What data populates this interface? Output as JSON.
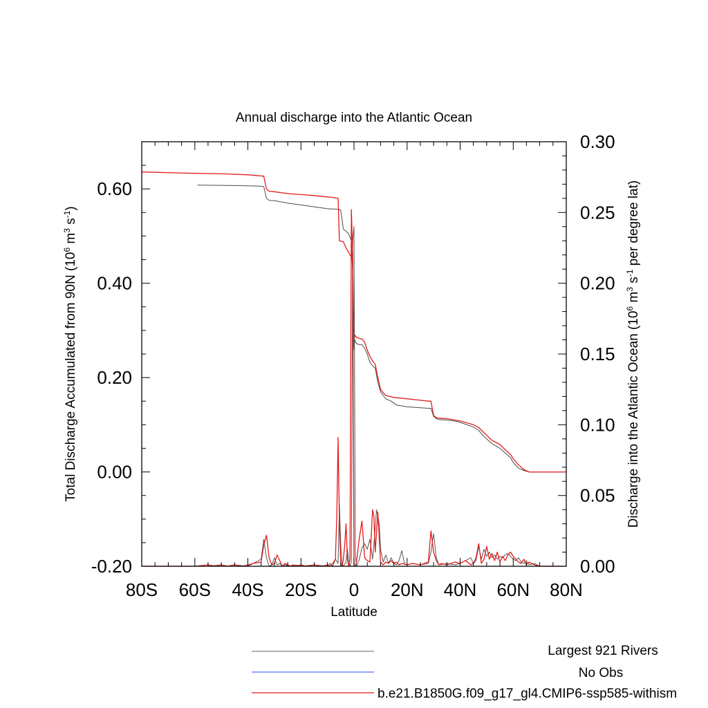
{
  "chart_data": {
    "type": "line",
    "title": "Annual discharge into the Atlantic Ocean",
    "xlabel": "Latitude",
    "ylabel_left": {
      "prefix": "Total Discharge Accumulated from 90N (10",
      "sup1": "6",
      "mid1": " m",
      "sup2": "3",
      "mid2": " s",
      "sup3": "-1",
      "suffix": ")"
    },
    "ylabel_right": {
      "prefix": "Discharge into the Atlantic Ocean (10",
      "sup1": "6",
      "mid1": " m",
      "sup2": "3",
      "mid2": " s",
      "sup3": "-1",
      "suffix": " per degree lat)"
    },
    "xlim": [
      -80,
      80
    ],
    "ylim_left": [
      -0.2,
      0.7
    ],
    "ylim_right": [
      0,
      0.3
    ],
    "x_ticks": [
      {
        "value": -80,
        "label": "80S"
      },
      {
        "value": -60,
        "label": "60S"
      },
      {
        "value": -40,
        "label": "40S"
      },
      {
        "value": -20,
        "label": "20S"
      },
      {
        "value": 0,
        "label": "0"
      },
      {
        "value": 20,
        "label": "20N"
      },
      {
        "value": 40,
        "label": "40N"
      },
      {
        "value": 60,
        "label": "60N"
      },
      {
        "value": 80,
        "label": "80N"
      }
    ],
    "y_ticks_left": [
      {
        "value": -0.2,
        "label": "-0.20"
      },
      {
        "value": 0.0,
        "label": "0.00"
      },
      {
        "value": 0.2,
        "label": "0.20"
      },
      {
        "value": 0.4,
        "label": "0.40"
      },
      {
        "value": 0.6,
        "label": "0.60"
      }
    ],
    "y_ticks_right": [
      {
        "value": 0.0,
        "label": "0.00"
      },
      {
        "value": 0.05,
        "label": "0.05"
      },
      {
        "value": 0.1,
        "label": "0.10"
      },
      {
        "value": 0.15,
        "label": "0.15"
      },
      {
        "value": 0.2,
        "label": "0.20"
      },
      {
        "value": 0.25,
        "label": "0.25"
      },
      {
        "value": 0.3,
        "label": "0.30"
      }
    ],
    "legend": {
      "placement": "bottom",
      "entries": [
        {
          "label": "Largest 921 Rivers",
          "color": "#808080"
        },
        {
          "label": "No Obs",
          "color": "#5a6cff"
        },
        {
          "label": "b.e21.B1850G.f09_g17_gl4.CMIP6-ssp585-withism",
          "color": "#e41a1a"
        }
      ]
    },
    "series": [
      {
        "name": "Largest 921 Rivers",
        "axis": "left",
        "color": "#4a4a4a",
        "x": [
          -59,
          -44,
          -36,
          -34,
          -33,
          -32,
          -30,
          -25,
          -20,
          -15,
          -10,
          -6,
          -5,
          -4,
          -3,
          -2,
          -1,
          -0.5,
          0,
          0.3,
          0.6,
          1,
          2,
          3,
          4,
          5,
          6,
          7,
          8,
          9,
          10,
          11,
          12,
          14,
          16,
          18,
          20,
          25,
          28,
          29,
          30,
          31,
          32,
          35,
          38,
          40,
          45,
          47,
          49,
          50,
          51,
          52,
          55,
          57,
          59,
          60,
          62,
          64,
          66,
          68,
          70,
          80
        ],
        "y": [
          0.608,
          0.607,
          0.606,
          0.605,
          0.58,
          0.576,
          0.575,
          0.57,
          0.566,
          0.562,
          0.558,
          0.557,
          0.555,
          0.515,
          0.51,
          0.505,
          0.49,
          0.42,
          0.26,
          0.28,
          0.275,
          0.272,
          0.27,
          0.27,
          0.262,
          0.25,
          0.232,
          0.225,
          0.22,
          0.19,
          0.17,
          0.162,
          0.155,
          0.15,
          0.142,
          0.14,
          0.138,
          0.136,
          0.135,
          0.135,
          0.118,
          0.113,
          0.111,
          0.11,
          0.108,
          0.105,
          0.095,
          0.088,
          0.075,
          0.07,
          0.065,
          0.06,
          0.05,
          0.04,
          0.03,
          0.02,
          0.008,
          0.003,
          0.0,
          0.0,
          0.0,
          0.0
        ]
      },
      {
        "name": "b.e21.B1850G.f09_g17_gl4.CMIP6-ssp585-withism",
        "axis": "left",
        "color": "#e41a1a",
        "x": [
          -80,
          -60,
          -50,
          -40,
          -34,
          -33,
          -32,
          -30,
          -25,
          -20,
          -15,
          -10,
          -8,
          -7,
          -6,
          -5.5,
          -4,
          -3,
          -2,
          -1,
          -0.5,
          0,
          0.3,
          0.6,
          1,
          2,
          3,
          4,
          5,
          6,
          7,
          8,
          9,
          10,
          11,
          12,
          15,
          20,
          25,
          28,
          29,
          30,
          31,
          32,
          35,
          40,
          45,
          47,
          49,
          50,
          51,
          52,
          55,
          57,
          59,
          60,
          62,
          64,
          66,
          68,
          70,
          80
        ],
        "y": [
          0.636,
          0.633,
          0.632,
          0.63,
          0.627,
          0.6,
          0.595,
          0.594,
          0.59,
          0.588,
          0.586,
          0.583,
          0.582,
          0.581,
          0.58,
          0.49,
          0.488,
          0.475,
          0.465,
          0.455,
          0.445,
          0.28,
          0.29,
          0.288,
          0.285,
          0.283,
          0.282,
          0.275,
          0.258,
          0.245,
          0.235,
          0.228,
          0.2,
          0.175,
          0.168,
          0.162,
          0.158,
          0.155,
          0.152,
          0.15,
          0.15,
          0.12,
          0.115,
          0.114,
          0.113,
          0.108,
          0.1,
          0.094,
          0.083,
          0.078,
          0.072,
          0.067,
          0.058,
          0.047,
          0.037,
          0.028,
          0.015,
          0.005,
          0.0,
          0.0,
          0.0,
          0.0
        ]
      },
      {
        "name": "Largest 921 Rivers",
        "axis": "right",
        "color": "#555555",
        "x": [
          -80,
          -55,
          -50,
          -47,
          -45,
          -40,
          -38,
          -35,
          -34,
          -33,
          -32,
          -31,
          -30,
          -29,
          -28,
          -27,
          -26,
          -24,
          -22,
          -20,
          -15,
          -10,
          -9,
          -8,
          -7,
          -6,
          -5.5,
          -5,
          -4.5,
          -4,
          -3,
          -2.5,
          -2,
          -1.5,
          -1,
          -0.5,
          0,
          0.5,
          1,
          2,
          3,
          4,
          5,
          6,
          7,
          8,
          8.5,
          9,
          9.5,
          10,
          11,
          12,
          13,
          14,
          15,
          16,
          17,
          18,
          19,
          20,
          22,
          25,
          28,
          29,
          30,
          31,
          32,
          35,
          38,
          40,
          42,
          44,
          45,
          46,
          47,
          48,
          49,
          50,
          51,
          52,
          53,
          54,
          55,
          56,
          57,
          58,
          59,
          60,
          61,
          62,
          63,
          64,
          65,
          66,
          68,
          70,
          75,
          80
        ],
        "y": [
          0,
          0,
          0.001,
          0,
          0.001,
          0,
          0.002,
          0.005,
          0.019,
          0.006,
          0,
          0.001,
          0.006,
          0.001,
          0.002,
          0,
          0.001,
          0,
          0.001,
          0,
          0.001,
          0,
          0.002,
          0,
          0.005,
          0.002,
          0.044,
          0.015,
          0.002,
          0,
          0.003,
          0.012,
          0.004,
          0,
          0.003,
          0.23,
          0.24,
          0.008,
          0,
          0.005,
          0.013,
          0.016,
          0.012,
          0.019,
          0.005,
          0.027,
          0.04,
          0.035,
          0.03,
          0.012,
          0.003,
          0.008,
          0.002,
          0.006,
          0.002,
          0.001,
          0.004,
          0.011,
          0.002,
          0.001,
          0.002,
          0.001,
          0.002,
          0.01,
          0.023,
          0.006,
          0.001,
          0.002,
          0.001,
          0.002,
          0.004,
          0.006,
          0.002,
          0.004,
          0.014,
          0.005,
          0.012,
          0.007,
          0.01,
          0.006,
          0.008,
          0.005,
          0.007,
          0.006,
          0.008,
          0.009,
          0.007,
          0.005,
          0.004,
          0.006,
          0.003,
          0.002,
          0.004,
          0.001,
          0.002,
          0,
          0,
          0
        ]
      },
      {
        "name": "b.e21.B1850G.f09_g17_gl4.CMIP6-ssp585-withism",
        "axis": "right",
        "color": "#e41a1a",
        "x": [
          -80,
          -60,
          -55,
          -52,
          -50,
          -48,
          -45,
          -42,
          -40,
          -38,
          -35,
          -34,
          -33,
          -32,
          -31,
          -30,
          -29,
          -28,
          -27,
          -26,
          -25,
          -24,
          -23,
          -22,
          -20,
          -18,
          -15,
          -12,
          -10,
          -9,
          -8,
          -7,
          -6.5,
          -6,
          -5.5,
          -5,
          -4.5,
          -4,
          -3.5,
          -3,
          -2.5,
          -2,
          -1.5,
          -1,
          -0.5,
          0,
          0.5,
          1,
          2,
          3,
          4,
          5,
          6,
          7,
          7.5,
          8,
          9,
          10,
          11,
          12,
          13,
          14,
          15,
          16,
          17,
          18,
          20,
          22,
          25,
          28,
          29,
          30,
          31,
          32,
          33,
          35,
          38,
          40,
          42,
          44,
          45,
          46,
          47,
          48,
          49,
          50,
          51,
          52,
          53,
          54,
          55,
          56,
          57,
          58,
          59,
          60,
          61,
          62,
          63,
          64,
          65,
          66,
          68,
          70,
          75,
          80
        ],
        "y": [
          0,
          0,
          0.001,
          0,
          0.001,
          0,
          0.001,
          0,
          0.001,
          0.002,
          0.003,
          0.015,
          0.022,
          0.006,
          0.001,
          0.002,
          0.008,
          0.004,
          0,
          0.002,
          0.001,
          0,
          0.001,
          0,
          0.001,
          0,
          0.001,
          0,
          0.001,
          0,
          0.002,
          0.005,
          0.035,
          0.091,
          0.03,
          0.002,
          0,
          0.005,
          0.015,
          0.03,
          0.005,
          0,
          0.005,
          0.252,
          0.22,
          0.001,
          0,
          0.004,
          0.02,
          0.032,
          0.006,
          0.004,
          0.003,
          0.04,
          0.035,
          0.01,
          0.038,
          0.003,
          0.001,
          0.003,
          0.002,
          0.004,
          0.002,
          0.003,
          0.001,
          0.002,
          0.001,
          0.002,
          0.001,
          0.003,
          0.025,
          0.01,
          0.004,
          0.001,
          0.002,
          0.001,
          0.003,
          0.002,
          0.004,
          0.001,
          0.002,
          0.006,
          0.016,
          0.002,
          0.005,
          0.014,
          0.005,
          0.009,
          0.004,
          0.01,
          0.003,
          0.007,
          0.004,
          0.008,
          0.01,
          0.007,
          0.005,
          0.003,
          0.002,
          0.005,
          0.001,
          0.003,
          0.001,
          0,
          0,
          0
        ]
      }
    ]
  }
}
